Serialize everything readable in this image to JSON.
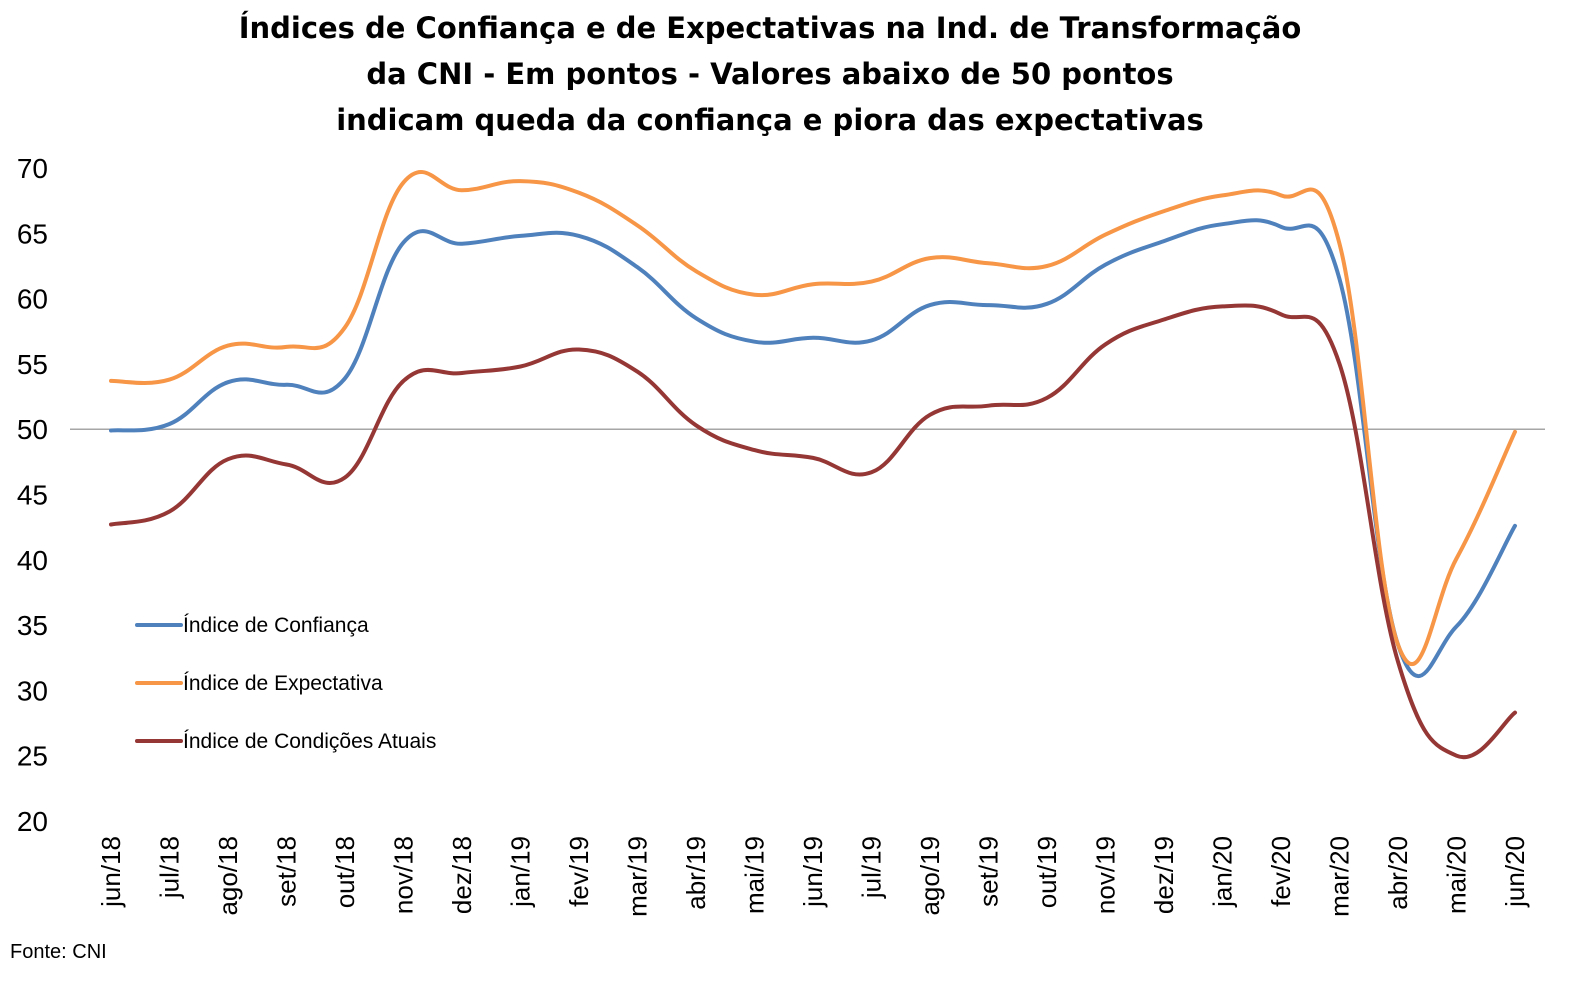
{
  "chart_data": {
    "type": "line",
    "title_lines": [
      "Índices de Confiança e de Expectativas na Ind. de Transformação",
      "da CNI - Em pontos - Valores abaixo de 50 pontos",
      "indicam queda da confiança e piora das expectativas"
    ],
    "categories": [
      "jun/18",
      "jul/18",
      "ago/18",
      "set/18",
      "out/18",
      "nov/18",
      "dez/18",
      "jan/19",
      "fev/19",
      "mar/19",
      "abr/19",
      "mai/19",
      "jun/19",
      "jul/19",
      "ago/19",
      "set/19",
      "out/19",
      "nov/19",
      "dez/19",
      "jan/20",
      "fev/20",
      "mar/20",
      "abr/20",
      "mai/20",
      "jun/20"
    ],
    "y_ticks": [
      "70",
      "65",
      "60",
      "55",
      "50",
      "45",
      "40",
      "35",
      "30",
      "25",
      "20"
    ],
    "ylim": [
      20,
      70
    ],
    "reference_line": 50,
    "grid": false,
    "legend_position": "left",
    "series": [
      {
        "name": "Índice de Confiança",
        "color": "#4F81BD",
        "values": [
          49.9,
          50.4,
          53.6,
          53.4,
          53.9,
          64.3,
          64.2,
          64.8,
          64.8,
          62.4,
          58.5,
          56.7,
          57.0,
          56.8,
          59.5,
          59.5,
          59.6,
          62.6,
          64.4,
          65.7,
          65.5,
          61.5,
          33.5,
          34.9,
          42.6
        ]
      },
      {
        "name": "Índice de Expectativa",
        "color": "#F79646",
        "values": [
          53.7,
          53.8,
          56.4,
          56.3,
          57.8,
          68.9,
          68.3,
          69.0,
          68.1,
          65.6,
          62.1,
          60.3,
          61.1,
          61.3,
          63.1,
          62.7,
          62.5,
          64.9,
          66.7,
          67.9,
          67.9,
          64.2,
          33.5,
          40.1,
          49.8
        ]
      },
      {
        "name": "Índice de Condições Atuais",
        "color": "#953735",
        "values": [
          42.7,
          43.7,
          47.7,
          47.3,
          46.3,
          53.7,
          54.3,
          54.8,
          56.1,
          54.4,
          50.3,
          48.4,
          47.8,
          46.7,
          51.1,
          51.8,
          52.4,
          56.5,
          58.4,
          59.4,
          58.8,
          55.0,
          32.2,
          25.0,
          28.3
        ]
      }
    ],
    "source": "Fonte: CNI"
  }
}
